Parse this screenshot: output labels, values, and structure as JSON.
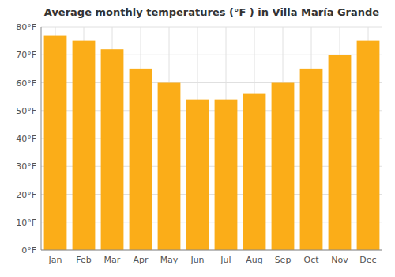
{
  "chart_data": {
    "type": "bar",
    "title": "Average monthly temperatures (°F ) in Villa María Grande",
    "categories": [
      "Jan",
      "Feb",
      "Mar",
      "Apr",
      "May",
      "Jun",
      "Jul",
      "Aug",
      "Sep",
      "Oct",
      "Nov",
      "Dec"
    ],
    "values": [
      77,
      75,
      72,
      65,
      60,
      54,
      54,
      56,
      60,
      65,
      70,
      75
    ],
    "color": "#FBAD18",
    "ylim": [
      0,
      80
    ],
    "yticks": [
      {
        "value": 0,
        "label": "0°F"
      },
      {
        "value": 10,
        "label": "10°F"
      },
      {
        "value": 20,
        "label": "20°F"
      },
      {
        "value": 30,
        "label": "30°F"
      },
      {
        "value": 40,
        "label": "40°F"
      },
      {
        "value": 50,
        "label": "50°F"
      },
      {
        "value": 60,
        "label": "60°F"
      },
      {
        "value": 70,
        "label": "70°F"
      },
      {
        "value": 80,
        "label": "80°F"
      }
    ],
    "grid": true
  }
}
